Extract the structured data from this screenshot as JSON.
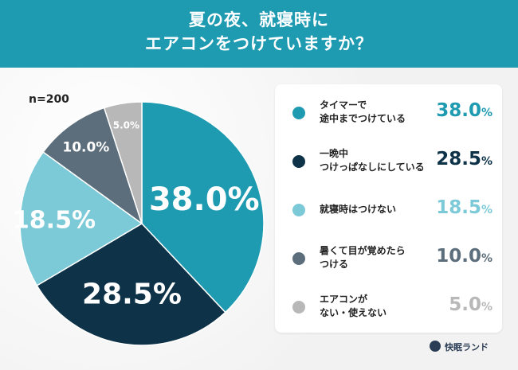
{
  "header": {
    "title_line1": "夏の夜、就寝時に",
    "title_line2": "エアコンをつけていますか？"
  },
  "sample_label": "n=200",
  "brand": {
    "name": "快眠ランド",
    "icon": "moon-logo-icon"
  },
  "chart_data": {
    "type": "pie",
    "categories": [
      "タイマーで途中までつけている",
      "一晩中つけっぱなしにしている",
      "就寝時はつけない",
      "暑くて目が覚めたらつける",
      "エアコンがない・使えない"
    ],
    "values": [
      38.0,
      28.5,
      18.5,
      10.0,
      5.0
    ],
    "slice_labels": [
      "38.0%",
      "28.5%",
      "18.5%",
      "10.0%",
      "5.0%"
    ],
    "colors": [
      "#1f9bb1",
      "#0e3349",
      "#7ccad7",
      "#5c6e7b",
      "#b8b8b8"
    ],
    "legend": [
      {
        "line1": "タイマーで",
        "line2": "途中までつけている",
        "num": "38.0",
        "pct": "%",
        "color": "#1f9bb1"
      },
      {
        "line1": "一晩中",
        "line2": "つけっぱなしにしている",
        "num": "28.5",
        "pct": "%",
        "color": "#0e3349"
      },
      {
        "line1": "就寝時はつけない",
        "line2": "",
        "num": "18.5",
        "pct": "%",
        "color": "#7ccad7"
      },
      {
        "line1": "暑くて目が覚めたら",
        "line2": "つける",
        "num": "10.0",
        "pct": "%",
        "color": "#5c6e7b"
      },
      {
        "line1": "エアコンが",
        "line2": "ない・使えない",
        "num": "5.0",
        "pct": "%",
        "color": "#b8b8b8"
      }
    ],
    "legend_placement": "right"
  }
}
